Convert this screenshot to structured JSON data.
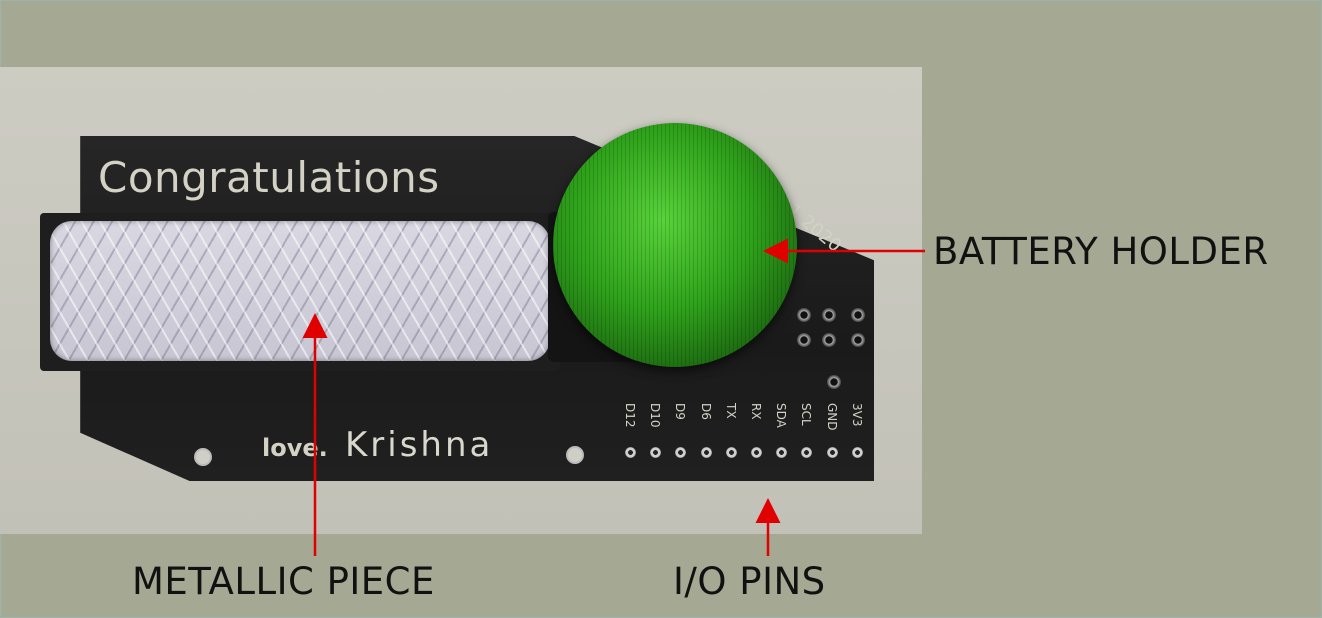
{
  "board": {
    "title": "Congratulations",
    "year": "1 2020",
    "signature_prefix": "love.",
    "signature_name": "Krishna",
    "pins": [
      "D12",
      "D10",
      "D9",
      "D6",
      "TX",
      "RX",
      "SDA",
      "SCL",
      "GND",
      "3V3"
    ]
  },
  "labels": {
    "battery_holder": "BATTERY HOLDER",
    "metallic_piece": "METALLIC PIECE",
    "io_pins": "I/O PINS"
  },
  "colors": {
    "annotation_arrow": "#e00000",
    "background": "#a5a893"
  }
}
